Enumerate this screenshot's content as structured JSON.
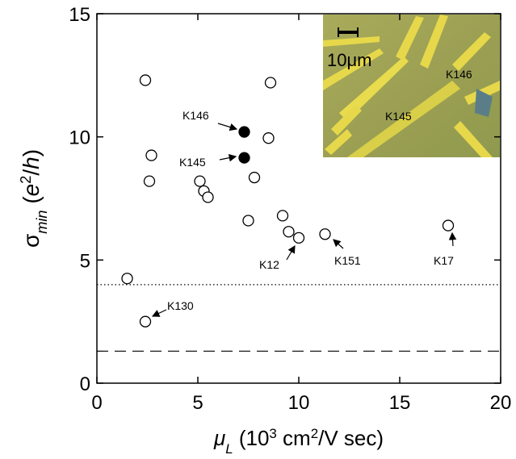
{
  "chart_data": {
    "type": "scatter",
    "xlabel": [
      {
        "text": "μ",
        "style": "italic"
      },
      {
        "text": "L",
        "style": "sub-italic"
      },
      {
        "text": " (10",
        "style": "normal"
      },
      {
        "text": "3",
        "style": "sup"
      },
      {
        "text": " cm",
        "style": "normal"
      },
      {
        "text": "2",
        "style": "sup"
      },
      {
        "text": "/V sec)",
        "style": "normal"
      }
    ],
    "ylabel": [
      {
        "text": "σ",
        "style": "normal"
      },
      {
        "text": "min",
        "style": "sub-italic"
      },
      {
        "text": " (",
        "style": "normal"
      },
      {
        "text": "e",
        "style": "italic"
      },
      {
        "text": "2",
        "style": "sup"
      },
      {
        "text": "/",
        "style": "normal"
      },
      {
        "text": "h",
        "style": "italic"
      },
      {
        "text": ")",
        "style": "normal"
      }
    ],
    "xlim": [
      0,
      20
    ],
    "ylim": [
      0,
      15
    ],
    "xticks": [
      0,
      5,
      10,
      15,
      20
    ],
    "yticks": [
      0,
      5,
      10,
      15
    ],
    "series": [
      {
        "color": "#000000",
        "filled": false,
        "x": [
          1.5,
          2.4,
          2.4,
          2.7,
          2.6,
          5.1,
          5.3,
          5.5,
          8.6,
          8.5,
          7.8,
          7.5,
          9.2,
          9.5,
          10.0,
          11.3,
          17.4
        ],
        "values": [
          4.25,
          2.5,
          12.3,
          9.25,
          8.2,
          8.2,
          7.8,
          7.55,
          12.2,
          9.95,
          8.35,
          6.6,
          6.8,
          6.15,
          5.9,
          6.05,
          6.4
        ]
      },
      {
        "color": "#000000",
        "filled": true,
        "x": [
          7.3,
          7.3
        ],
        "values": [
          10.2,
          9.15
        ]
      }
    ],
    "reference_lines": [
      {
        "value": 4.0,
        "style": "dotted"
      },
      {
        "value": 1.3,
        "style": "dashed"
      }
    ],
    "annotations": [
      "K146",
      "K145",
      "K12",
      "K151",
      "K17",
      "K130"
    ],
    "inset": {
      "scale_bar": "10μm",
      "labels": [
        "K146",
        "K145"
      ]
    }
  }
}
